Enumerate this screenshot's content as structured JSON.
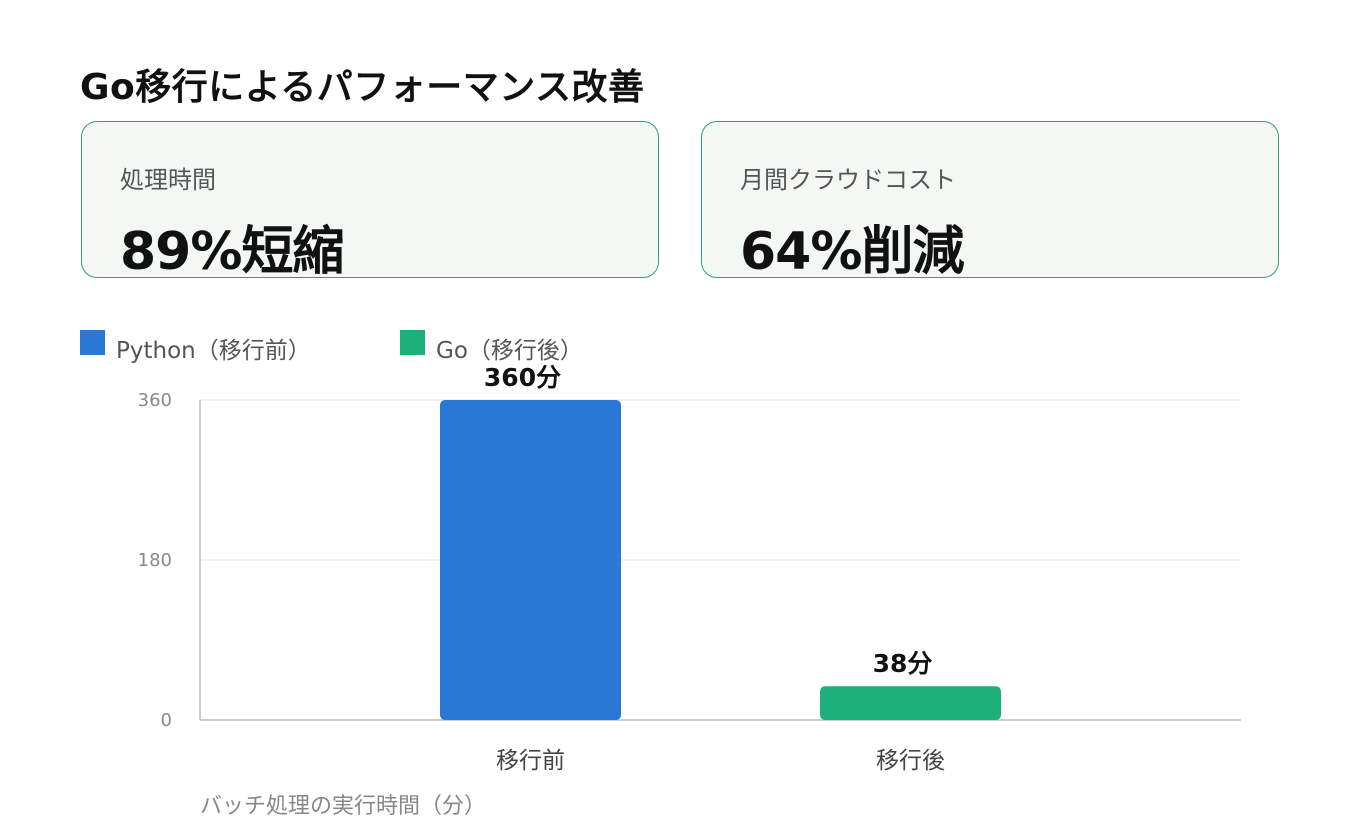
{
  "page": {
    "title": "Go移行によるパフォーマンス改善"
  },
  "kpis": [
    {
      "label": "処理時間",
      "value": "89%短縮"
    },
    {
      "label": "月間クラウドコスト",
      "value": "64%削減"
    }
  ],
  "colors": {
    "python": "#2a78d6",
    "go": "#1db07a",
    "card_border": "#2fa07b",
    "card_bg": "#f3f8f5"
  },
  "legend": [
    {
      "label": "Python（移行前）",
      "color": "#2a78d6"
    },
    {
      "label": "Go（移行後）",
      "color": "#1db07a"
    }
  ],
  "chart_data": {
    "type": "bar",
    "categories": [
      "移行前",
      "移行後"
    ],
    "values": [
      360,
      38
    ],
    "value_labels": [
      "360分",
      "38分"
    ],
    "bar_colors": [
      "#2a78d6",
      "#1db07a"
    ],
    "series": [
      {
        "name": "Python（移行前）",
        "values": [
          360,
          null
        ]
      },
      {
        "name": "Go（移行後）",
        "values": [
          null,
          38
        ]
      }
    ],
    "yticks": [
      0,
      180,
      360
    ],
    "ylim": [
      0,
      360
    ],
    "xlabel": "バッチ処理の実行時間（分）",
    "ylabel": "",
    "grid": true,
    "legend_position": "top-left"
  }
}
